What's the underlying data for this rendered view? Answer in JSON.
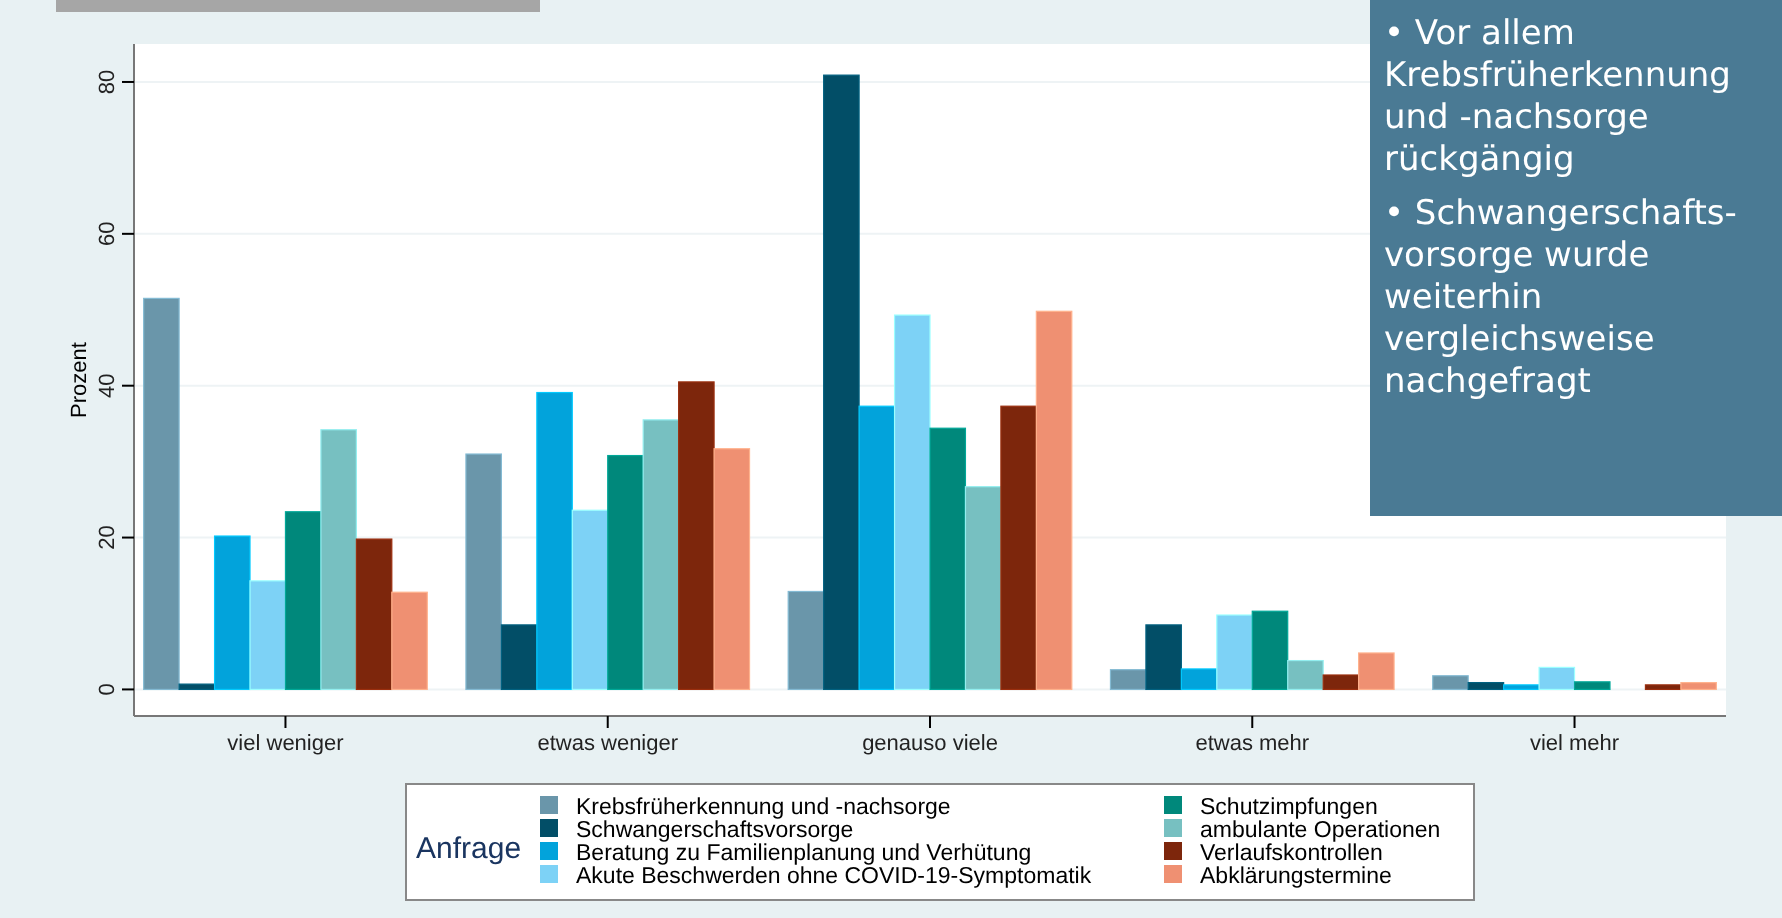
{
  "chart_data": {
    "type": "bar",
    "ylabel": "Prozent",
    "legend_title": "Anfrage",
    "categories": [
      "viel weniger",
      "etwas weniger",
      "genauso viele",
      "etwas mehr",
      "viel mehr"
    ],
    "series": [
      {
        "name": "Krebsfrüherkennung und -nachsorge",
        "color": "#6a96aa",
        "values": [
          51.5,
          31.0,
          12.9,
          2.6,
          1.8
        ]
      },
      {
        "name": "Schwangerschaftsvorsorge",
        "color": "#024e67",
        "values": [
          0.7,
          8.5,
          80.9,
          8.5,
          0.9
        ]
      },
      {
        "name": "Beratung zu Familienplanung und Verhütung",
        "color": "#02a3db",
        "values": [
          20.2,
          39.1,
          37.3,
          2.7,
          0.6
        ]
      },
      {
        "name": "Akute Beschwerden ohne COVID-19-Symptomatik",
        "color": "#7dd2f6",
        "values": [
          14.3,
          23.6,
          49.3,
          9.8,
          2.9
        ]
      },
      {
        "name": "Schutzimpfungen",
        "color": "#00887b",
        "values": [
          23.4,
          30.8,
          34.4,
          10.3,
          1.0
        ]
      },
      {
        "name": "ambulante Operationen",
        "color": "#77c0c1",
        "values": [
          34.2,
          35.5,
          26.7,
          3.8,
          0
        ]
      },
      {
        "name": "Verlaufskontrollen",
        "color": "#7d260c",
        "values": [
          19.8,
          40.5,
          37.3,
          1.9,
          0.6
        ]
      },
      {
        "name": "Abklärungstermine",
        "color": "#ef9072",
        "values": [
          12.8,
          31.7,
          49.8,
          4.8,
          0.9
        ]
      }
    ],
    "ylim": [
      -3.5,
      85
    ],
    "yticks": [
      0,
      20,
      40,
      60,
      80
    ],
    "grid": "y",
    "legend": "bottom",
    "annotations": [
      "• Vor allem Krebsfrüherkennung und -nachsorge rückgängig",
      "• Schwangerschafts-vorsorge wurde weiterhin vergleichsweise nachgefragt"
    ]
  }
}
